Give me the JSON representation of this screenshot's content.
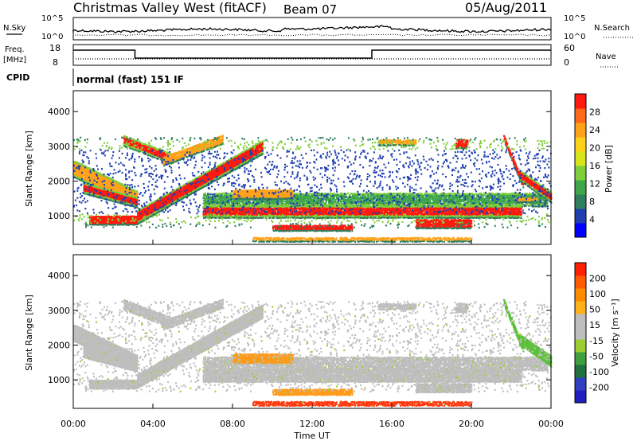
{
  "header": {
    "station": "Christmas Valley West (fitACF)",
    "beam": "Beam 07",
    "date": "05/Aug/2011"
  },
  "status_panels": {
    "nsky_label": "N.Sky",
    "nsky_ticks": [
      "10^5",
      "10^0"
    ],
    "nsearch_label": "N.Search",
    "nsearch_ticks": [
      "10^5",
      "10^0"
    ],
    "freq_label": "Freq.",
    "freq_unit": "[MHz]",
    "freq_ticks": [
      "18",
      "8"
    ],
    "nave_label": "Nave",
    "nave_ticks": [
      "60",
      "0"
    ],
    "cpid_label": "CPID",
    "cpid_text": "normal (fast) 151 IF"
  },
  "chart_data": [
    {
      "type": "heatmap",
      "panel": "power",
      "ylabel": "Slant Range [km]",
      "xlabel": "",
      "yticks": [
        "4000",
        "3000",
        "2000",
        "1000"
      ],
      "ylim": [
        180,
        4600
      ],
      "xlim": [
        0,
        24
      ],
      "colorbar_label": "Power [dB]",
      "colorbar_ticks": [
        "28",
        "24",
        "20",
        "16",
        "12",
        "8",
        "4"
      ],
      "colorbar_colors": [
        "#0000ff",
        "#1f3fb0",
        "#2f7f5f",
        "#3fa64a",
        "#7fcf3a",
        "#d6e61a",
        "#ffd21a",
        "#ffa21a",
        "#ff6a1a",
        "#ff1a10"
      ]
    },
    {
      "type": "heatmap",
      "panel": "velocity",
      "ylabel": "Slant Range [km]",
      "xlabel": "Time UT",
      "yticks": [
        "4000",
        "3000",
        "2000",
        "1000"
      ],
      "ylim": [
        180,
        4600
      ],
      "xlim": [
        0,
        24
      ],
      "xticks": [
        "00:00",
        "04:00",
        "08:00",
        "12:00",
        "16:00",
        "20:00",
        "00:00"
      ],
      "colorbar_label": "Velocity [m s⁻¹]",
      "colorbar_ticks": [
        "200",
        "100",
        "50",
        "15",
        "-15",
        "-50",
        "-100",
        "-200"
      ],
      "colorbar_colors": [
        "#2020c0",
        "#3040c0",
        "#207040",
        "#40a040",
        "#9acd32",
        "#bebebe",
        "#bebebe",
        "#ffb01a",
        "#ff8c00",
        "#ff5a00",
        "#ff2000"
      ]
    }
  ]
}
